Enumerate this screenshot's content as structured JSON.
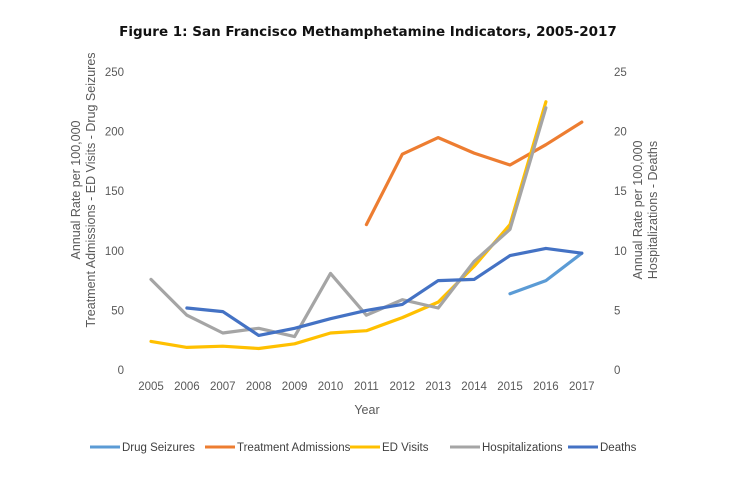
{
  "chart_data": {
    "type": "line",
    "title": "Figure 1: San Francisco Methamphetamine Indicators, 2005-2017",
    "xlabel": "Year",
    "ylabel_left": [
      "Annual Rate per 100,000",
      "Treatment Admissions - ED Visits - Drug Seizures"
    ],
    "ylabel_right": [
      "Annual Rate per 100,000",
      "Hospitalizations - Deaths"
    ],
    "categories": [
      "2005",
      "2006",
      "2007",
      "2008",
      "2009",
      "2010",
      "2011",
      "2012",
      "2013",
      "2014",
      "2015",
      "2016",
      "2017"
    ],
    "ylim_left": [
      0,
      250
    ],
    "yticks_left": [
      0,
      50,
      100,
      150,
      200,
      250
    ],
    "ylim_right": [
      0,
      25
    ],
    "yticks_right": [
      0,
      5,
      10,
      15,
      20,
      25
    ],
    "grid": false,
    "legend_position": "bottom",
    "series": [
      {
        "name": "Drug Seizures",
        "axis": "left",
        "color": "#5B9BD5",
        "values": [
          null,
          null,
          null,
          null,
          null,
          null,
          null,
          null,
          null,
          null,
          64,
          75,
          98
        ]
      },
      {
        "name": "Treatment Admissions",
        "axis": "left",
        "color": "#ED7D31",
        "values": [
          null,
          null,
          null,
          null,
          null,
          null,
          122,
          181,
          195,
          182,
          172,
          189,
          208
        ]
      },
      {
        "name": "ED Visits",
        "axis": "left",
        "color": "#FFC000",
        "values": [
          24,
          19,
          20,
          18,
          22,
          31,
          33,
          44,
          57,
          87,
          122,
          225,
          null
        ]
      },
      {
        "name": "Hospitalizations",
        "axis": "right",
        "color": "#A5A5A5",
        "values": [
          7.6,
          4.6,
          3.1,
          3.5,
          2.8,
          8.1,
          4.6,
          5.9,
          5.2,
          9.1,
          11.8,
          22.0,
          null
        ]
      },
      {
        "name": "Deaths",
        "axis": "right",
        "color": "#4472C4",
        "values": [
          null,
          5.2,
          4.9,
          2.9,
          3.5,
          4.3,
          5.0,
          5.5,
          7.5,
          7.6,
          9.6,
          10.2,
          9.8
        ]
      }
    ]
  }
}
